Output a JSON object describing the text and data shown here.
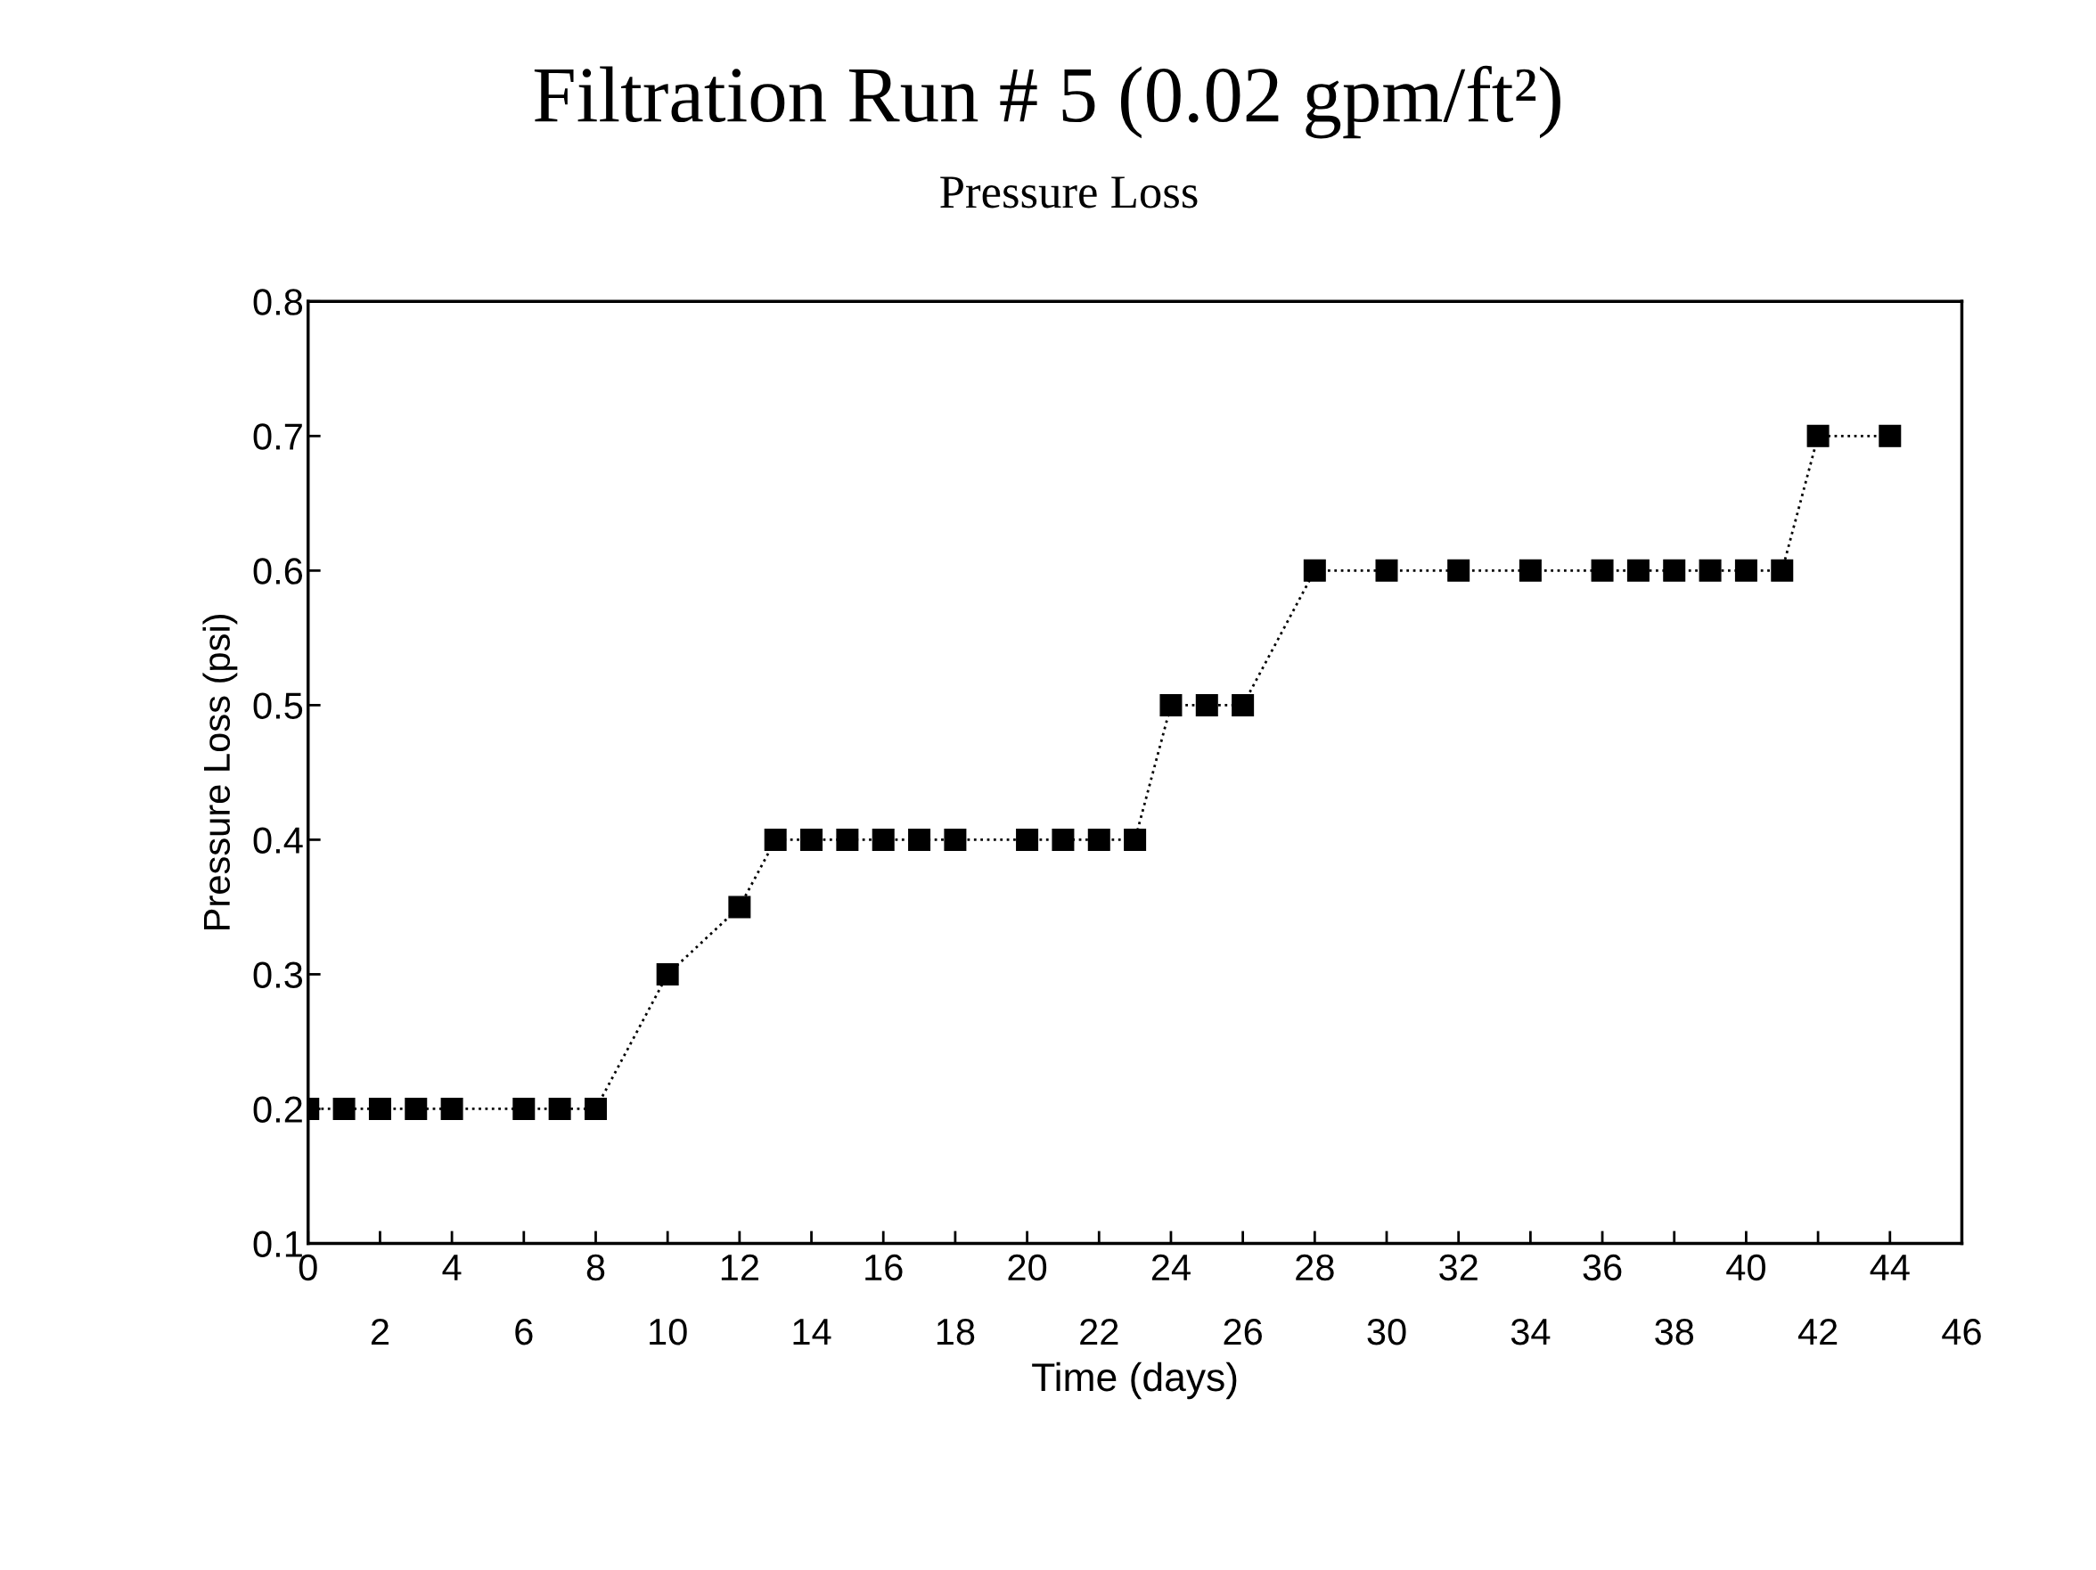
{
  "chart_data": {
    "type": "line",
    "title": "Filtration Run # 5 (0.02 gpm/ft²)",
    "subtitle": "Pressure Loss",
    "xlabel": "Time (days)",
    "ylabel": "Pressure Loss (psi)",
    "x": [
      0,
      1,
      2,
      3,
      4,
      6,
      7,
      8,
      10,
      12,
      13,
      14,
      15,
      16,
      17,
      18,
      20,
      21,
      22,
      23,
      24,
      25,
      26,
      28,
      30,
      32,
      34,
      36,
      37,
      38,
      39,
      40,
      41,
      42,
      44
    ],
    "series": [
      {
        "color": "#000000",
        "values": [
          0.2,
          0.2,
          0.2,
          0.2,
          0.2,
          0.2,
          0.2,
          0.2,
          0.3,
          0.35,
          0.4,
          0.4,
          0.4,
          0.4,
          0.4,
          0.4,
          0.4,
          0.4,
          0.4,
          0.4,
          0.5,
          0.5,
          0.5,
          0.6,
          0.6,
          0.6,
          0.6,
          0.6,
          0.6,
          0.6,
          0.6,
          0.6,
          0.6,
          0.7,
          0.7
        ]
      }
    ],
    "xlim": [
      0,
      46
    ],
    "ylim": [
      0.1,
      0.8
    ],
    "xticks": [
      0,
      {
        "value": 2,
        "label": null
      },
      4,
      {
        "value": 6,
        "label": null
      },
      8,
      {
        "value": 10,
        "label": null
      },
      12,
      {
        "value": 14,
        "label": null
      },
      16,
      {
        "value": 18,
        "label": null
      },
      20,
      {
        "value": 22,
        "label": null
      },
      24,
      {
        "value": 26,
        "label": null
      },
      28,
      {
        "value": 30,
        "label": null
      },
      32,
      {
        "value": 34,
        "label": null
      },
      36,
      {
        "value": 38,
        "label": null
      },
      40,
      {
        "value": 42,
        "label": null
      },
      44,
      {
        "value": 46,
        "label": null
      }
    ],
    "x2lim": [
      0,
      46
    ],
    "x2ticks": [
      2,
      6,
      10,
      14,
      18,
      22,
      26,
      30,
      34,
      38,
      42,
      46
    ],
    "yticks": [
      0.1,
      0.2,
      0.3,
      0.4,
      0.5,
      0.6,
      0.7,
      0.8
    ],
    "grid": false,
    "legend": false,
    "marker": "square",
    "line_style": "dotted"
  }
}
